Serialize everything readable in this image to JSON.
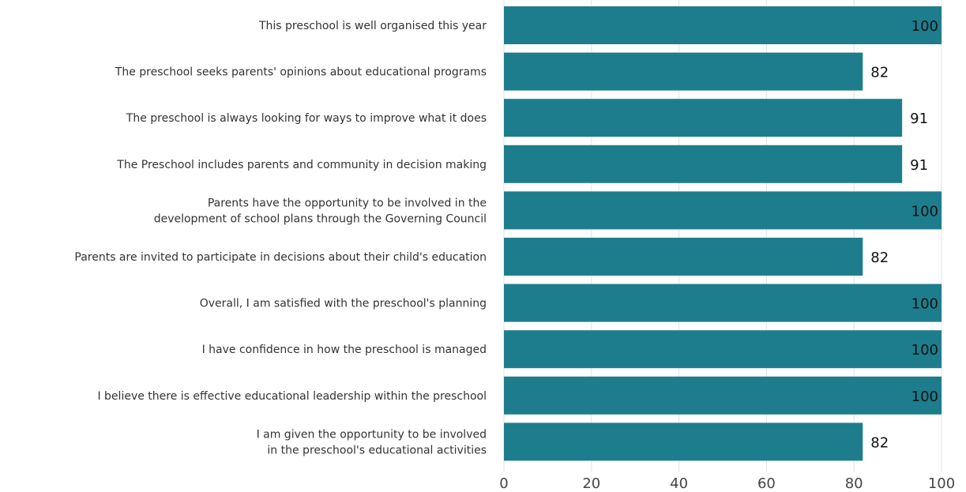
{
  "chart_data": {
    "type": "bar",
    "orientation": "horizontal",
    "categories": [
      [
        "This preschool is well organised this year"
      ],
      [
        "The preschool seeks parents' opinions about educational programs"
      ],
      [
        "The preschool is always looking for ways to improve what it does"
      ],
      [
        "The Preschool includes parents and community in decision making"
      ],
      [
        "Parents have the opportunity to be involved in the",
        "development of school plans through the Governing Council"
      ],
      [
        "Parents are invited to participate in decisions about their child's education"
      ],
      [
        "Overall, I am satisfied with the preschool's planning"
      ],
      [
        "I have confidence in how the preschool is managed"
      ],
      [
        "I believe there is effective educational leadership within the preschool"
      ],
      [
        "I am given the opportunity to be involved",
        "in the preschool's educational activities"
      ]
    ],
    "values": [
      100,
      82,
      91,
      91,
      100,
      82,
      100,
      100,
      100,
      82
    ],
    "value_labels": [
      "100",
      "82",
      "91",
      "91",
      "100",
      "82",
      "100",
      "100",
      "100",
      "82"
    ],
    "xlim": [
      0,
      100
    ],
    "x_ticks": [
      "0",
      "20",
      "40",
      "60",
      "80",
      "100"
    ],
    "title": "",
    "xlabel": "",
    "ylabel": "",
    "grid": "vertical",
    "legend": "none",
    "bar_color": "#1e7d8c",
    "grid_color": "#dde3e5"
  }
}
